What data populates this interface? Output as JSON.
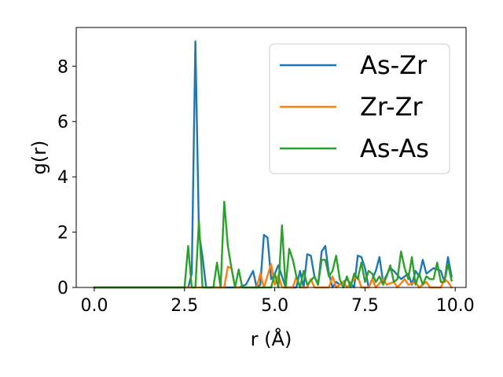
{
  "chart_data": {
    "type": "line",
    "xlabel": "r (Å)",
    "ylabel": "g(r)",
    "xlim": [
      -0.5,
      10.3
    ],
    "ylim": [
      0,
      9.4
    ],
    "xticks": [
      0.0,
      2.5,
      5.0,
      7.5,
      10.0
    ],
    "xtick_labels": [
      "0.0",
      "2.5",
      "5.0",
      "7.5",
      "10.0"
    ],
    "yticks": [
      0,
      2,
      4,
      6,
      8
    ],
    "ytick_labels": [
      "0",
      "2",
      "4",
      "6",
      "8"
    ],
    "grid": false,
    "legend_position": "top-right",
    "series": [
      {
        "name": "As-Zr",
        "color": "#1f77b4",
        "points": [
          [
            0.0,
            0
          ],
          [
            2.6,
            0
          ],
          [
            2.7,
            0.5
          ],
          [
            2.8,
            8.9
          ],
          [
            2.9,
            2.0
          ],
          [
            3.0,
            1.1
          ],
          [
            3.1,
            0
          ],
          [
            3.6,
            0
          ],
          [
            4.0,
            0
          ],
          [
            4.2,
            0.1
          ],
          [
            4.4,
            0.6
          ],
          [
            4.5,
            0
          ],
          [
            4.6,
            0.1
          ],
          [
            4.7,
            1.9
          ],
          [
            4.8,
            1.8
          ],
          [
            4.9,
            0.3
          ],
          [
            5.0,
            0.5
          ],
          [
            5.1,
            0.8
          ],
          [
            5.2,
            0.4
          ],
          [
            5.3,
            0
          ],
          [
            5.6,
            0
          ],
          [
            5.7,
            0.6
          ],
          [
            5.8,
            0
          ],
          [
            5.9,
            1.2
          ],
          [
            6.0,
            1.15
          ],
          [
            6.1,
            0.4
          ],
          [
            6.2,
            0.1
          ],
          [
            6.3,
            1.3
          ],
          [
            6.4,
            1.5
          ],
          [
            6.5,
            0.5
          ],
          [
            6.6,
            0
          ],
          [
            6.7,
            0.2
          ],
          [
            6.8,
            0.1
          ],
          [
            7.0,
            0.3
          ],
          [
            7.2,
            0
          ],
          [
            7.3,
            1.15
          ],
          [
            7.4,
            1.1
          ],
          [
            7.5,
            0.7
          ],
          [
            7.6,
            0
          ],
          [
            7.8,
            0.6
          ],
          [
            7.9,
            1.1
          ],
          [
            8.0,
            0.2
          ],
          [
            8.2,
            0.7
          ],
          [
            8.3,
            0.6
          ],
          [
            8.5,
            0.3
          ],
          [
            8.7,
            0.5
          ],
          [
            8.8,
            0.1
          ],
          [
            8.9,
            0.6
          ],
          [
            9.0,
            0.4
          ],
          [
            9.1,
            1.0
          ],
          [
            9.2,
            0.5
          ],
          [
            9.3,
            0.6
          ],
          [
            9.4,
            0.7
          ],
          [
            9.6,
            0.6
          ],
          [
            9.7,
            0.2
          ],
          [
            9.8,
            1.1
          ],
          [
            9.9,
            0.4
          ]
        ]
      },
      {
        "name": "Zr-Zr",
        "color": "#ff7f0e",
        "points": [
          [
            0.0,
            0
          ],
          [
            3.6,
            0
          ],
          [
            3.7,
            0.75
          ],
          [
            3.8,
            0.7
          ],
          [
            3.9,
            0
          ],
          [
            4.5,
            0
          ],
          [
            4.6,
            0.5
          ],
          [
            4.7,
            0
          ],
          [
            4.9,
            0.85
          ],
          [
            5.0,
            0.1
          ],
          [
            5.1,
            0.45
          ],
          [
            5.2,
            0
          ],
          [
            5.5,
            0
          ],
          [
            5.6,
            0.4
          ],
          [
            5.7,
            0
          ],
          [
            5.9,
            0
          ],
          [
            6.0,
            0.3
          ],
          [
            6.1,
            0
          ],
          [
            6.5,
            0
          ],
          [
            6.6,
            0.4
          ],
          [
            6.7,
            0
          ],
          [
            6.9,
            0.2
          ],
          [
            7.0,
            0
          ],
          [
            7.2,
            0.3
          ],
          [
            7.3,
            0.4
          ],
          [
            7.4,
            0
          ],
          [
            7.6,
            0
          ],
          [
            7.7,
            0.3
          ],
          [
            7.8,
            0
          ],
          [
            8.0,
            0.3
          ],
          [
            8.1,
            0.1
          ],
          [
            8.3,
            0.2
          ],
          [
            8.4,
            0
          ],
          [
            8.6,
            0.3
          ],
          [
            8.7,
            0.1
          ],
          [
            8.9,
            0.2
          ],
          [
            9.0,
            0
          ],
          [
            9.2,
            0.2
          ],
          [
            9.3,
            0
          ],
          [
            9.6,
            0
          ],
          [
            9.7,
            0.3
          ],
          [
            9.8,
            0.2
          ],
          [
            9.9,
            0
          ]
        ]
      },
      {
        "name": "As-As",
        "color": "#2ca02c",
        "points": [
          [
            0.0,
            0
          ],
          [
            2.5,
            0
          ],
          [
            2.6,
            1.5
          ],
          [
            2.7,
            0
          ],
          [
            2.8,
            0
          ],
          [
            2.9,
            2.4
          ],
          [
            3.0,
            0
          ],
          [
            3.3,
            0
          ],
          [
            3.4,
            0.9
          ],
          [
            3.5,
            0
          ],
          [
            3.6,
            3.1
          ],
          [
            3.7,
            1.5
          ],
          [
            3.8,
            0.7
          ],
          [
            3.9,
            0
          ],
          [
            4.0,
            0.65
          ],
          [
            4.1,
            0
          ],
          [
            4.9,
            0
          ],
          [
            5.0,
            0.5
          ],
          [
            5.1,
            0
          ],
          [
            5.2,
            2.25
          ],
          [
            5.3,
            0
          ],
          [
            5.4,
            1.4
          ],
          [
            5.5,
            1.0
          ],
          [
            5.6,
            0.4
          ],
          [
            5.7,
            0
          ],
          [
            5.8,
            0.6
          ],
          [
            5.9,
            0.1
          ],
          [
            6.1,
            0.4
          ],
          [
            6.2,
            0.1
          ],
          [
            6.3,
            1.0
          ],
          [
            6.4,
            1.0
          ],
          [
            6.5,
            0.4
          ],
          [
            6.6,
            0.6
          ],
          [
            6.7,
            1.15
          ],
          [
            6.8,
            0.3
          ],
          [
            6.9,
            0
          ],
          [
            7.0,
            0.4
          ],
          [
            7.1,
            0
          ],
          [
            7.2,
            0.5
          ],
          [
            7.3,
            0.3
          ],
          [
            7.4,
            0.9
          ],
          [
            7.5,
            0.2
          ],
          [
            7.6,
            0.6
          ],
          [
            7.7,
            0.5
          ],
          [
            7.8,
            0.2
          ],
          [
            7.9,
            0.4
          ],
          [
            8.0,
            0.1
          ],
          [
            8.1,
            0.4
          ],
          [
            8.2,
            0.8
          ],
          [
            8.3,
            0.2
          ],
          [
            8.4,
            0.3
          ],
          [
            8.5,
            1.3
          ],
          [
            8.6,
            0.7
          ],
          [
            8.7,
            0.3
          ],
          [
            8.8,
            1.1
          ],
          [
            8.9,
            0.1
          ],
          [
            9.0,
            0.5
          ],
          [
            9.1,
            0.1
          ],
          [
            9.2,
            0.4
          ],
          [
            9.3,
            0.3
          ],
          [
            9.4,
            0.3
          ],
          [
            9.5,
            0.9
          ],
          [
            9.6,
            0.2
          ],
          [
            9.7,
            0.2
          ],
          [
            9.8,
            0.85
          ],
          [
            9.9,
            0.25
          ]
        ]
      }
    ]
  }
}
